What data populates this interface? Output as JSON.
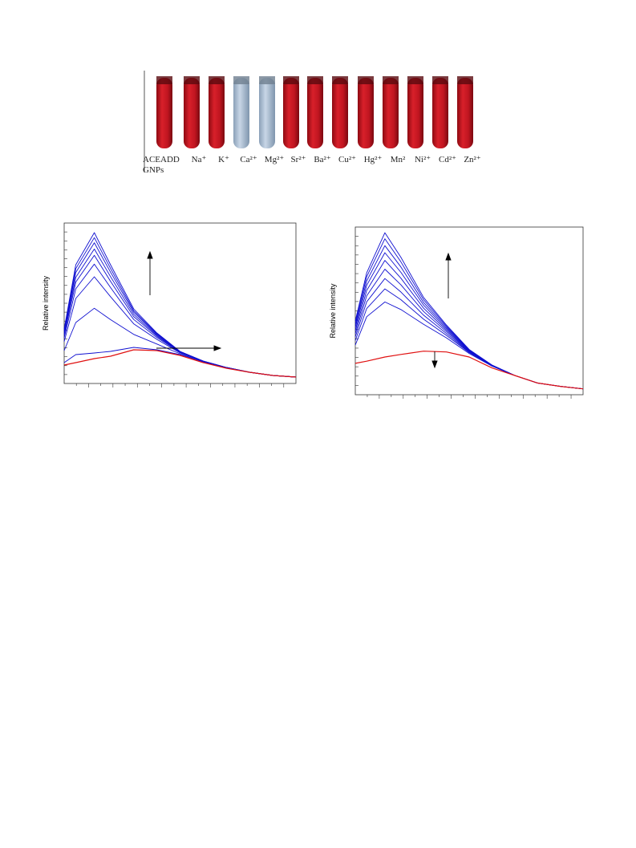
{
  "tubes": {
    "labels": [
      "ACEADD GNPs",
      "Na⁺",
      "K⁺",
      "Ca²⁺",
      "Mg²⁺",
      "Sr²⁺",
      "Ba²⁺",
      "Cu²⁺",
      "Hg²⁺",
      "Mn²",
      "Ni²⁺",
      "Cd²⁺",
      "Zn²⁺"
    ]
  },
  "chart_data": [
    {
      "type": "line",
      "y_label": "Relative intensity",
      "x": [
        0,
        5,
        13,
        20,
        30,
        40,
        50,
        60,
        70,
        80,
        90,
        100
      ],
      "xlim": [
        0,
        100
      ],
      "ylim": [
        0,
        100
      ],
      "series": [
        {
          "color": "#1010d0",
          "values": [
            34,
            74,
            94,
            74,
            46.5,
            31.5,
            20,
            14,
            10,
            7,
            5,
            4
          ]
        },
        {
          "color": "#1010d0",
          "values": [
            33.1,
            71.6,
            90.9,
            71.7,
            45.4,
            31,
            19.9,
            14,
            10,
            7,
            5,
            4
          ]
        },
        {
          "color": "#1010d0",
          "values": [
            32.2,
            69.2,
            87.7,
            69.4,
            44.4,
            30.6,
            19.8,
            13.9,
            10,
            7,
            5,
            4
          ]
        },
        {
          "color": "#1010d0",
          "values": [
            31.1,
            66.2,
            83.8,
            66.6,
            43.1,
            30,
            19.7,
            13.9,
            9.9,
            7,
            5,
            4
          ]
        },
        {
          "color": "#1010d0",
          "values": [
            30,
            63.2,
            79.9,
            63.7,
            41.7,
            29.4,
            19.6,
            13.8,
            9.9,
            7,
            5,
            4
          ]
        },
        {
          "color": "#1010d0",
          "values": [
            28.4,
            59,
            74.4,
            59.8,
            39.9,
            28.6,
            19.4,
            13.8,
            9.9,
            7,
            5,
            4
          ]
        },
        {
          "color": "#1010d0",
          "values": [
            26.1,
            53,
            66.5,
            54.1,
            37.2,
            27.5,
            19.1,
            13.7,
            9.8,
            7,
            5,
            4
          ]
        },
        {
          "color": "#1010d0",
          "values": [
            20.5,
            38,
            46.9,
            39.8,
            30.6,
            24.6,
            18.5,
            13.4,
            9.7,
            7,
            5,
            4
          ]
        },
        {
          "color": "#1010d0",
          "values": [
            13,
            18,
            19,
            20,
            22.5,
            21,
            18,
            13.5,
            9.7,
            7,
            5,
            4
          ]
        },
        {
          "color": "#e01010",
          "values": [
            11.5,
            13,
            15.5,
            17,
            21,
            20.5,
            17.5,
            13,
            9.5,
            7,
            5,
            4
          ]
        }
      ]
    },
    {
      "type": "line",
      "y_label": "Relative intensity",
      "x": [
        0,
        5,
        13,
        20,
        30,
        40,
        50,
        60,
        70,
        80,
        90,
        100
      ],
      "xlim": [
        0,
        100
      ],
      "ylim": [
        0,
        100
      ],
      "series": [
        {
          "color": "#1010d0",
          "values": [
            44,
            72.7,
            96.6,
            82,
            58,
            41.6,
            27,
            17.7,
            11.5,
            7,
            5,
            3.5
          ]
        },
        {
          "color": "#1010d0",
          "values": [
            42.7,
            70.4,
            93,
            79.3,
            56.6,
            40.9,
            26.8,
            17.7,
            11.5,
            7,
            5,
            3.5
          ]
        },
        {
          "color": "#1010d0",
          "values": [
            41.3,
            67.8,
            88.9,
            76.2,
            55,
            40.2,
            26.6,
            17.6,
            11.5,
            7,
            5,
            3.5
          ]
        },
        {
          "color": "#1010d0",
          "values": [
            39.9,
            65.2,
            84.7,
            73,
            53.4,
            39.4,
            26.3,
            17.5,
            11.5,
            7,
            5,
            3.5
          ]
        },
        {
          "color": "#1010d0",
          "values": [
            38.2,
            62.2,
            80.1,
            69.5,
            51.6,
            38.5,
            26,
            17.5,
            11.5,
            7,
            5,
            3.5
          ]
        },
        {
          "color": "#1010d0",
          "values": [
            36.4,
            59,
            74.9,
            65.6,
            49.6,
            37.6,
            25.7,
            17.4,
            11.5,
            7,
            5,
            3.5
          ]
        },
        {
          "color": "#1010d0",
          "values": [
            34.5,
            55.4,
            69.3,
            61.3,
            47.4,
            36.5,
            25.4,
            17.3,
            11.5,
            7,
            5,
            3.5
          ]
        },
        {
          "color": "#1010d0",
          "values": [
            32.3,
            51.4,
            63.1,
            56.7,
            45,
            35.4,
            25.1,
            17.2,
            11.5,
            7,
            5,
            3.5
          ]
        },
        {
          "color": "#1010d0",
          "values": [
            29.6,
            46.5,
            55.3,
            50.8,
            42,
            33.9,
            24.6,
            17.1,
            11.5,
            7,
            5,
            3.5
          ]
        },
        {
          "color": "#e01010",
          "values": [
            18.7,
            20,
            22.5,
            24,
            26,
            25.5,
            22.5,
            16,
            11.5,
            7,
            5,
            3.5
          ]
        }
      ]
    }
  ]
}
